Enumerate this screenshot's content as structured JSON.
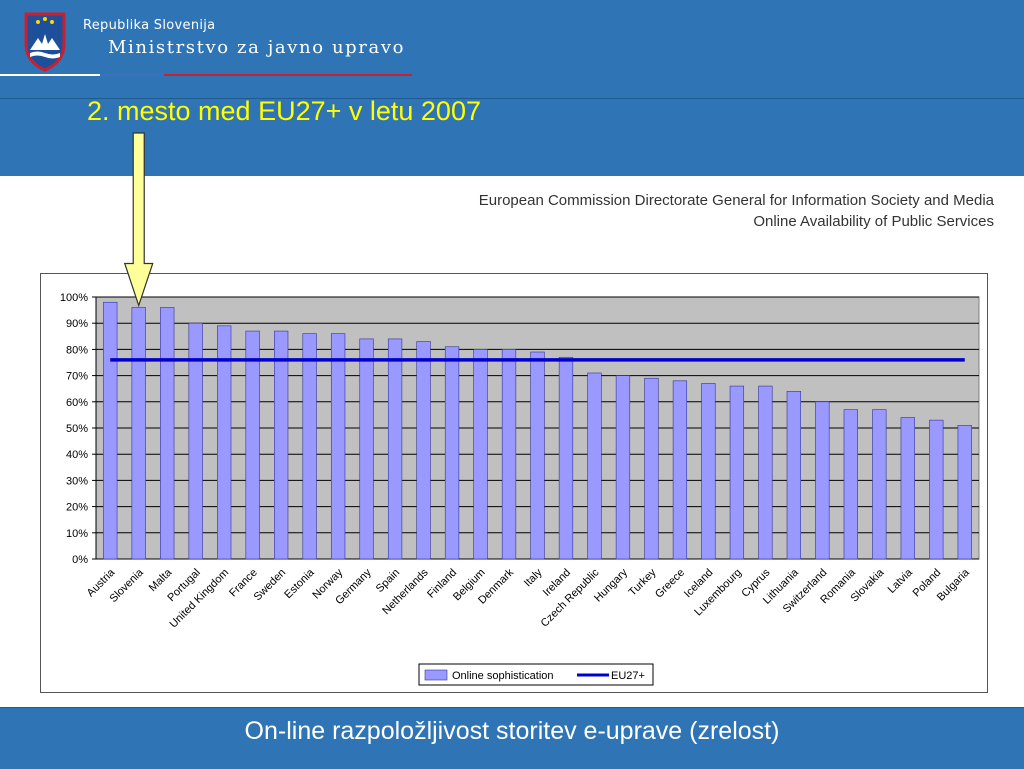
{
  "header": {
    "republic": "Republika Slovenija",
    "ministry": "Ministrstvo za javno upravo"
  },
  "slide": {
    "title": "2. mesto med EU27+ v letu 2007",
    "source_line1": "European Commission Directorate General for Information Society and Media",
    "source_line2": "Online Availability of Public Services",
    "footer": "On-line razpoložljivost storitev e-uprave (zrelost)"
  },
  "colors": {
    "band": "#2f74b5",
    "title_text": "#ffff00",
    "bar_fill": "#9999ff",
    "bar_stroke": "#333399",
    "plot_bg": "#c0c0c0",
    "eu_line": "#0000cc",
    "arrow_fill": "#ffff99"
  },
  "chart_data": {
    "type": "bar",
    "categories": [
      "Austria",
      "Slovenia",
      "Malta",
      "Portugal",
      "United Kingdom",
      "France",
      "Sweden",
      "Estonia",
      "Norway",
      "Germany",
      "Spain",
      "Netherlands",
      "Finland",
      "Belgium",
      "Denmark",
      "Italy",
      "Ireland",
      "Czech Republic",
      "Hungary",
      "Turkey",
      "Greece",
      "Iceland",
      "Luxembourg",
      "Cyprus",
      "Lithuania",
      "Switzerland",
      "Romania",
      "Slovakia",
      "Latvia",
      "Poland",
      "Bulgaria"
    ],
    "series": [
      {
        "name": "Online sophistication",
        "values": [
          98,
          96,
          96,
          90,
          89,
          87,
          87,
          86,
          86,
          84,
          84,
          83,
          81,
          80,
          80,
          79,
          77,
          71,
          70,
          69,
          68,
          67,
          66,
          66,
          64,
          60,
          57,
          57,
          54,
          53,
          51
        ]
      },
      {
        "name": "EU27+",
        "type": "line",
        "values": [
          76,
          76,
          76,
          76,
          76,
          76,
          76,
          76,
          76,
          76,
          76,
          76,
          76,
          76,
          76,
          76,
          76,
          76,
          76,
          76,
          76,
          76,
          76,
          76,
          76,
          76,
          76,
          76,
          76,
          76,
          76
        ]
      }
    ],
    "yticks": [
      "100%",
      "90%",
      "80%",
      "70%",
      "60%",
      "50%",
      "40%",
      "30%",
      "20%",
      "10%",
      "0%"
    ],
    "ylim": [
      0,
      100
    ],
    "grid": true,
    "legend": "bottom-center",
    "highlight_category": "Slovenia"
  }
}
